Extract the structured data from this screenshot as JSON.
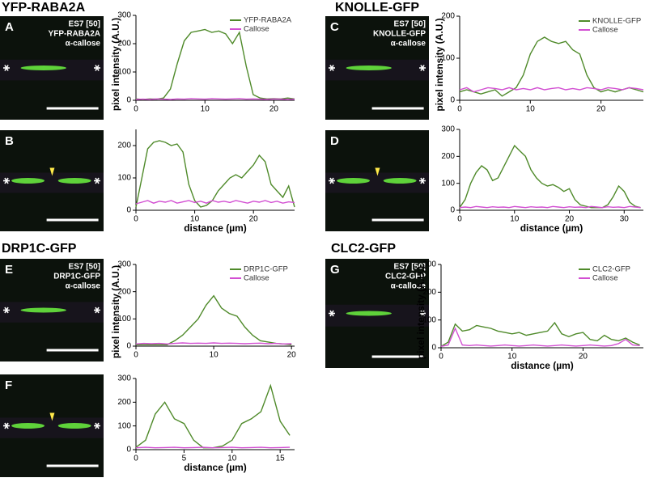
{
  "sections": [
    "YFP-RABA2A",
    "KNOLLE-GFP",
    "DRP1C-GFP",
    "CLC2-GFP"
  ],
  "images": [
    {
      "letter": "A",
      "lines": [
        "ES7 [50]",
        "YFP-RABA2A",
        "α-callose"
      ]
    },
    {
      "letter": "B"
    },
    {
      "letter": "C",
      "lines": [
        "ES7 [50]",
        "KNOLLE-GFP",
        "α-callose"
      ]
    },
    {
      "letter": "D"
    },
    {
      "letter": "E",
      "lines": [
        "ES7 [50]",
        "DRP1C-GFP",
        "α-callose"
      ]
    },
    {
      "letter": "F"
    },
    {
      "letter": "G",
      "lines": [
        "ES7 [50]",
        "CLC2-GFP",
        "α-callose"
      ]
    }
  ],
  "chart_data": [
    {
      "type": "line",
      "ylabel": "pixel intensity (A.U.)",
      "legend": "upper right",
      "x": [
        0,
        1,
        2,
        3,
        4,
        5,
        6,
        7,
        8,
        9,
        10,
        11,
        12,
        13,
        14,
        15,
        16,
        17,
        18,
        19,
        20,
        21,
        22,
        23
      ],
      "xlim": [
        0,
        23
      ],
      "xticks": [
        0,
        10,
        20
      ],
      "ylim": [
        0,
        300
      ],
      "yticks": [
        0,
        100,
        200,
        300
      ],
      "series": [
        {
          "name": "YFP-RABA2A",
          "color": "#4f8a2a",
          "values": [
            5,
            3,
            5,
            4,
            8,
            40,
            130,
            210,
            240,
            245,
            250,
            240,
            245,
            235,
            200,
            240,
            120,
            20,
            8,
            5,
            6,
            5,
            8,
            5
          ]
        },
        {
          "name": "Callose",
          "color": "#d24fd2",
          "values": [
            3,
            4,
            3,
            5,
            4,
            3,
            5,
            4,
            6,
            5,
            4,
            6,
            5,
            4,
            5,
            6,
            4,
            5,
            4,
            3,
            5,
            4,
            3,
            4
          ]
        }
      ]
    },
    {
      "type": "line",
      "xlabel": "distance (µm)",
      "x": [
        0,
        1,
        2,
        3,
        4,
        5,
        6,
        7,
        8,
        9,
        10,
        11,
        12,
        13,
        14,
        15,
        16,
        17,
        18,
        19,
        20,
        21,
        22,
        23,
        24,
        25,
        26,
        27
      ],
      "xlim": [
        0,
        27
      ],
      "xticks": [
        0,
        10,
        20
      ],
      "ylim": [
        0,
        250
      ],
      "yticks": [
        0,
        100,
        200
      ],
      "series": [
        {
          "color": "#4f8a2a",
          "values": [
            10,
            100,
            190,
            210,
            215,
            210,
            200,
            205,
            180,
            80,
            30,
            10,
            15,
            30,
            60,
            80,
            100,
            110,
            100,
            120,
            140,
            170,
            150,
            80,
            60,
            40,
            75,
            10
          ]
        },
        {
          "color": "#d24fd2",
          "values": [
            20,
            25,
            30,
            22,
            28,
            25,
            30,
            22,
            26,
            30,
            24,
            28,
            22,
            30,
            25,
            28,
            24,
            30,
            26,
            22,
            28,
            25,
            30,
            24,
            28,
            22,
            26,
            24
          ]
        }
      ]
    },
    {
      "type": "line",
      "ylabel": "pixel intensity (A.U.)",
      "legend": "upper right",
      "x": [
        0,
        1,
        2,
        3,
        4,
        5,
        6,
        7,
        8,
        9,
        10,
        11,
        12,
        13,
        14,
        15,
        16,
        17,
        18,
        19,
        20,
        21,
        22,
        23,
        24,
        25,
        26
      ],
      "xlim": [
        0,
        26
      ],
      "xticks": [
        0,
        10,
        20
      ],
      "ylim": [
        0,
        200
      ],
      "yticks": [
        0,
        100,
        200
      ],
      "series": [
        {
          "name": "KNOLLE-GFP",
          "color": "#4f8a2a",
          "values": [
            20,
            25,
            20,
            15,
            20,
            25,
            10,
            20,
            30,
            60,
            110,
            140,
            150,
            140,
            135,
            140,
            120,
            110,
            60,
            30,
            20,
            25,
            20,
            25,
            30,
            25,
            20
          ]
        },
        {
          "name": "Callose",
          "color": "#d24fd2",
          "values": [
            25,
            30,
            20,
            25,
            30,
            28,
            25,
            30,
            25,
            28,
            25,
            30,
            25,
            28,
            30,
            25,
            28,
            25,
            30,
            28,
            25,
            30,
            28,
            25,
            30,
            28,
            25
          ]
        }
      ]
    },
    {
      "type": "line",
      "xlabel": "distance (µm)",
      "x": [
        0,
        1,
        2,
        3,
        4,
        5,
        6,
        7,
        8,
        9,
        10,
        11,
        12,
        13,
        14,
        15,
        16,
        17,
        18,
        19,
        20,
        21,
        22,
        23,
        24,
        25,
        26,
        27,
        28,
        29,
        30,
        31,
        32,
        33
      ],
      "xlim": [
        0,
        33.5
      ],
      "xticks": [
        0,
        10,
        20,
        30
      ],
      "ylim": [
        0,
        300
      ],
      "yticks": [
        0,
        100,
        200,
        300
      ],
      "series": [
        {
          "color": "#4f8a2a",
          "values": [
            10,
            40,
            100,
            140,
            165,
            150,
            110,
            120,
            160,
            200,
            240,
            220,
            200,
            150,
            120,
            100,
            90,
            95,
            85,
            70,
            80,
            40,
            20,
            15,
            10,
            10,
            10,
            20,
            50,
            90,
            70,
            30,
            15,
            10
          ]
        },
        {
          "color": "#d24fd2",
          "values": [
            10,
            12,
            10,
            14,
            12,
            10,
            13,
            11,
            12,
            10,
            14,
            12,
            10,
            13,
            11,
            12,
            10,
            14,
            12,
            10,
            13,
            11,
            12,
            10,
            14,
            12,
            10,
            13,
            11,
            12,
            10,
            14,
            12,
            10
          ]
        }
      ]
    },
    {
      "type": "line",
      "ylabel": "pixel intensity (A.U.)",
      "legend": "upper right",
      "x": [
        0,
        1,
        2,
        3,
        4,
        5,
        6,
        7,
        8,
        9,
        10,
        11,
        12,
        13,
        14,
        15,
        16,
        17,
        18,
        19,
        20
      ],
      "xlim": [
        0,
        20.4
      ],
      "xticks": [
        0,
        10,
        20
      ],
      "ylim": [
        0,
        300
      ],
      "yticks": [
        0,
        100,
        200,
        300
      ],
      "series": [
        {
          "name": "DRP1C-GFP",
          "color": "#4f8a2a",
          "values": [
            5,
            5,
            5,
            5,
            5,
            20,
            40,
            70,
            100,
            150,
            185,
            140,
            120,
            110,
            70,
            40,
            20,
            15,
            10,
            8,
            5
          ]
        },
        {
          "name": "Callose",
          "color": "#d24fd2",
          "values": [
            8,
            10,
            9,
            10,
            8,
            10,
            12,
            10,
            11,
            10,
            12,
            10,
            11,
            10,
            9,
            10,
            11,
            9,
            10,
            8,
            9
          ]
        }
      ]
    },
    {
      "type": "line",
      "xlabel": "distance (µm)",
      "x": [
        0,
        1,
        2,
        3,
        4,
        5,
        6,
        7,
        8,
        9,
        10,
        11,
        12,
        13,
        14,
        15,
        16
      ],
      "xlim": [
        0,
        16.5
      ],
      "xticks": [
        0,
        5,
        10,
        15
      ],
      "ylim": [
        0,
        300
      ],
      "yticks": [
        0,
        100,
        200,
        300
      ],
      "series": [
        {
          "color": "#4f8a2a",
          "values": [
            10,
            40,
            150,
            200,
            130,
            110,
            40,
            8,
            8,
            15,
            40,
            110,
            130,
            160,
            270,
            120,
            60
          ]
        },
        {
          "color": "#d24fd2",
          "values": [
            8,
            10,
            8,
            9,
            10,
            8,
            9,
            10,
            8,
            9,
            10,
            8,
            9,
            10,
            8,
            9,
            10
          ]
        }
      ]
    },
    {
      "type": "line",
      "ylabel": "pixel intensity (A.U.)",
      "xlabel": "distance (µm)",
      "legend": "upper right",
      "x": [
        0,
        1,
        2,
        3,
        4,
        5,
        6,
        7,
        8,
        9,
        10,
        11,
        12,
        13,
        14,
        15,
        16,
        17,
        18,
        19,
        20,
        21,
        22,
        23,
        24,
        25,
        26,
        27,
        28
      ],
      "xlim": [
        0,
        28.5
      ],
      "xticks": [
        0,
        10,
        20
      ],
      "ylim": [
        0,
        300
      ],
      "yticks": [
        0,
        100,
        200,
        300
      ],
      "series": [
        {
          "name": "CLC2-GFP",
          "color": "#4f8a2a",
          "values": [
            5,
            20,
            85,
            60,
            65,
            80,
            75,
            70,
            60,
            55,
            50,
            55,
            45,
            50,
            55,
            60,
            90,
            50,
            40,
            50,
            55,
            30,
            25,
            45,
            30,
            25,
            35,
            20,
            10
          ]
        },
        {
          "name": "Callose",
          "color": "#d24fd2",
          "values": [
            5,
            10,
            70,
            10,
            8,
            10,
            8,
            6,
            8,
            10,
            8,
            6,
            8,
            10,
            8,
            6,
            8,
            10,
            8,
            6,
            8,
            10,
            8,
            6,
            8,
            15,
            30,
            10,
            8
          ]
        }
      ]
    }
  ]
}
